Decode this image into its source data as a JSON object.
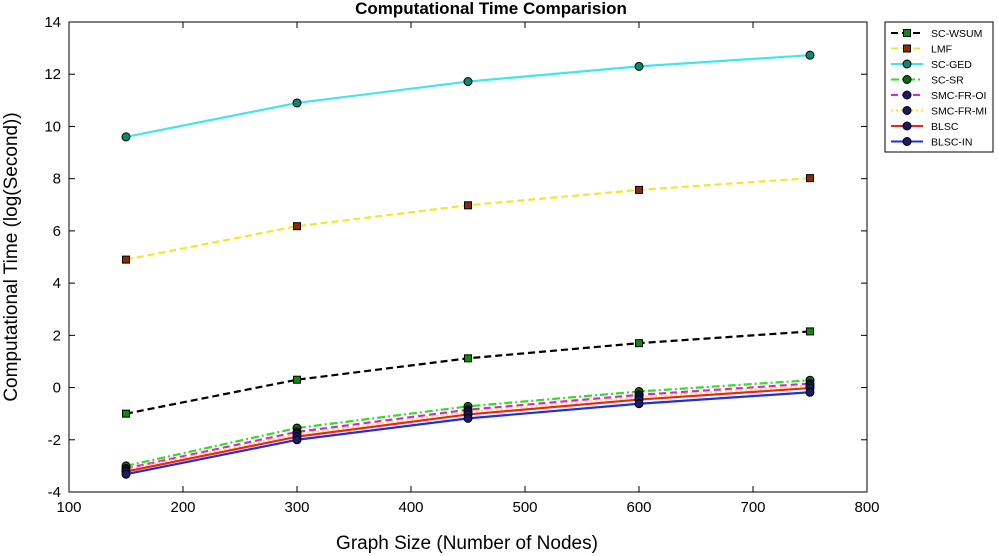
{
  "chart_data": {
    "type": "line",
    "title": "Computational Time Comparision",
    "xlabel": "Graph Size (Number of Nodes)",
    "ylabel": "Computational Time (log(Second))",
    "xlim": [
      100,
      800
    ],
    "ylim": [
      -4,
      14
    ],
    "xticks": [
      100,
      200,
      300,
      400,
      500,
      600,
      700,
      800
    ],
    "yticks": [
      -4,
      -2,
      0,
      2,
      4,
      6,
      8,
      10,
      12,
      14
    ],
    "grid": false,
    "legend_position": "top-right",
    "x": [
      150,
      300,
      450,
      600,
      750
    ],
    "series": [
      {
        "name": "SC-WSUM",
        "values": [
          -1.0,
          0.3,
          1.12,
          1.7,
          2.15
        ],
        "color": "#000000",
        "dash": "dashed",
        "marker": "square",
        "marker_fill": "#0b8a0b"
      },
      {
        "name": "LMF",
        "values": [
          4.9,
          6.18,
          6.98,
          7.57,
          8.02
        ],
        "color": "#f2e82a",
        "dash": "dashed",
        "marker": "square",
        "marker_fill": "#8a2a0b"
      },
      {
        "name": "SC-GED",
        "values": [
          9.6,
          10.9,
          11.72,
          12.3,
          12.73
        ],
        "color": "#3ee6f0",
        "dash": "solid",
        "marker": "circle",
        "marker_fill": "#0b8a6a"
      },
      {
        "name": "SC-SR",
        "values": [
          -3.0,
          -1.55,
          -0.72,
          -0.15,
          0.28
        ],
        "color": "#33dd22",
        "dash": "dashdot",
        "marker": "circle",
        "marker_fill": "#0b6a0b"
      },
      {
        "name": "SMC-FR-OI",
        "values": [
          -3.1,
          -1.7,
          -0.85,
          -0.28,
          0.15
        ],
        "color": "#e020e0",
        "dash": "dashed",
        "marker": "circle",
        "marker_fill": "#1a1a66"
      },
      {
        "name": "SMC-FR-MI",
        "values": [
          -3.15,
          -1.78,
          -0.93,
          -0.36,
          0.08
        ],
        "color": "#f2e82a",
        "dash": "dotted",
        "marker": "circle",
        "marker_fill": "#1a1a66"
      },
      {
        "name": "BLSC",
        "values": [
          -3.22,
          -1.88,
          -1.03,
          -0.46,
          -0.02
        ],
        "color": "#ee2222",
        "dash": "solid",
        "marker": "circle",
        "marker_fill": "#1a1a66"
      },
      {
        "name": "BLSC-IN",
        "values": [
          -3.32,
          -2.0,
          -1.18,
          -0.62,
          -0.18
        ],
        "color": "#1f2fdd",
        "dash": "solid",
        "marker": "circle",
        "marker_fill": "#1a1a66"
      }
    ]
  }
}
